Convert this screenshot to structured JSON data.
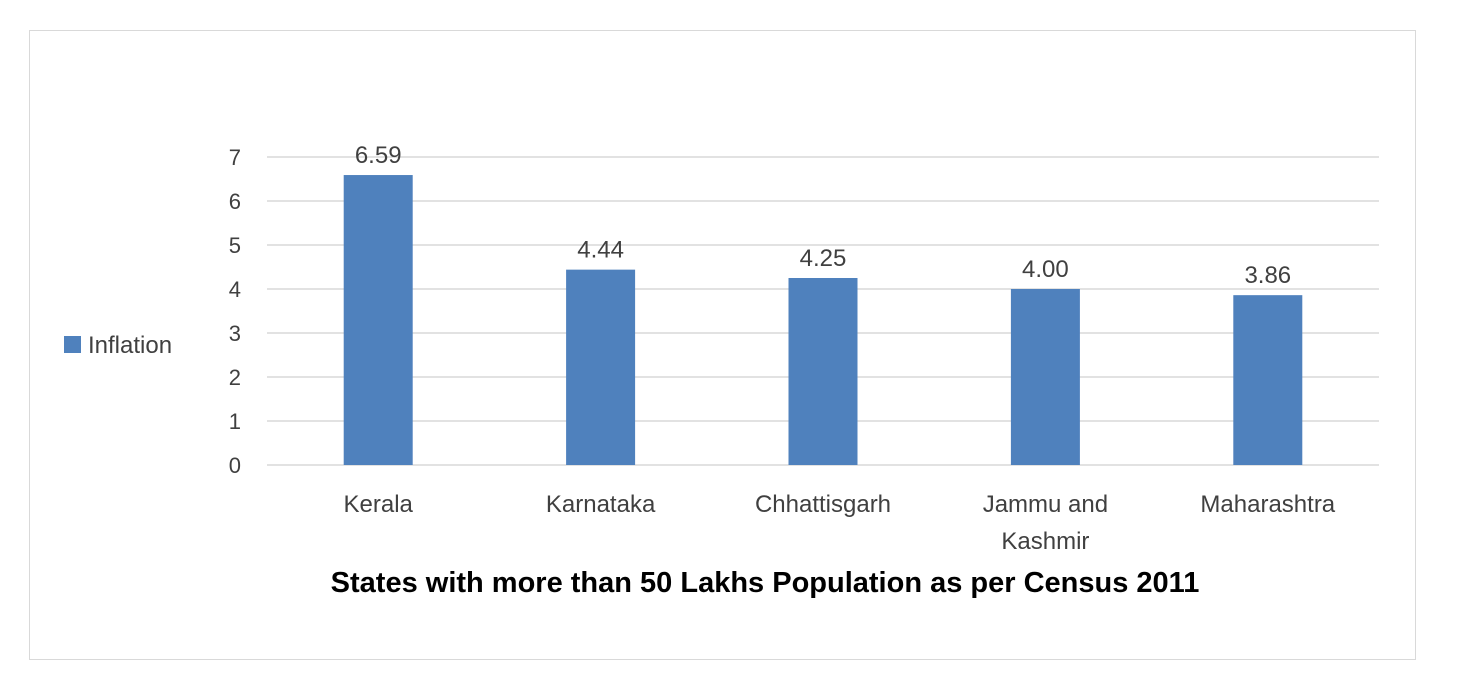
{
  "chart_data": {
    "type": "bar",
    "title": "States with more than 50 Lakhs Population as per Census 2011",
    "xlabel": "",
    "ylabel": "",
    "categories": [
      "Kerala",
      "Karnataka",
      "Chhattisgarh",
      "Jammu and Kashmir",
      "Maharashtra"
    ],
    "category_lines": [
      [
        "Kerala"
      ],
      [
        "Karnataka"
      ],
      [
        "Chhattisgarh"
      ],
      [
        "Jammu and",
        "Kashmir"
      ],
      [
        "Maharashtra"
      ]
    ],
    "series": [
      {
        "name": "Inflation",
        "values": [
          6.59,
          4.44,
          4.25,
          4.0,
          3.86
        ],
        "labels": [
          "6.59",
          "4.44",
          "4.25",
          "4.00",
          "3.86"
        ],
        "color": "#4f81bd"
      }
    ],
    "ylim": [
      0,
      7
    ],
    "yticks": [
      0,
      1,
      2,
      3,
      4,
      5,
      6,
      7
    ],
    "grid": true,
    "legend_position": "left"
  }
}
